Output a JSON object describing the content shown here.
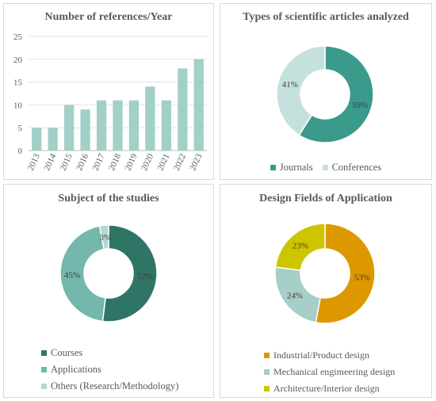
{
  "chart_data": [
    {
      "type": "bar",
      "title": "Number of references/Year",
      "categories": [
        "2013",
        "2014",
        "2015",
        "2016",
        "2017",
        "2018",
        "2019",
        "2020",
        "2021",
        "2022",
        "2023"
      ],
      "values": [
        5,
        5,
        10,
        9,
        11,
        11,
        11,
        14,
        11,
        18,
        20
      ],
      "ylim": [
        0,
        25
      ],
      "yticks": [
        "0",
        "5",
        "10",
        "15",
        "20",
        "25"
      ],
      "grid": true,
      "color": "#a3cfc9"
    },
    {
      "type": "pie",
      "title": "Types of scientific articles analyzed",
      "labels": [
        "Journals",
        "Conferences"
      ],
      "values": [
        59,
        41
      ],
      "value_labels": [
        "59%",
        "41%"
      ],
      "colors": [
        "#3a9a8c",
        "#c5e1de"
      ],
      "legend_position": "bottom"
    },
    {
      "type": "pie",
      "title": "Subject of the studies",
      "labels": [
        "Courses",
        "Applications",
        "Others (Research/Methodology)"
      ],
      "values": [
        52,
        45,
        3
      ],
      "value_labels": [
        "52%",
        "45%",
        "3%"
      ],
      "colors": [
        "#2f7566",
        "#73b7ad",
        "#b2d9d4"
      ],
      "legend_position": "bottom"
    },
    {
      "type": "pie",
      "title": "Design Fields of Application",
      "labels": [
        "Industrial/Product design",
        "Mechanical engimeering design",
        "Architecture/Interior design"
      ],
      "values": [
        53,
        24,
        23
      ],
      "value_labels": [
        "53%",
        "24%",
        "23%"
      ],
      "colors": [
        "#dd9800",
        "#a7cec8",
        "#ccc500"
      ],
      "legend_position": "bottom"
    }
  ]
}
